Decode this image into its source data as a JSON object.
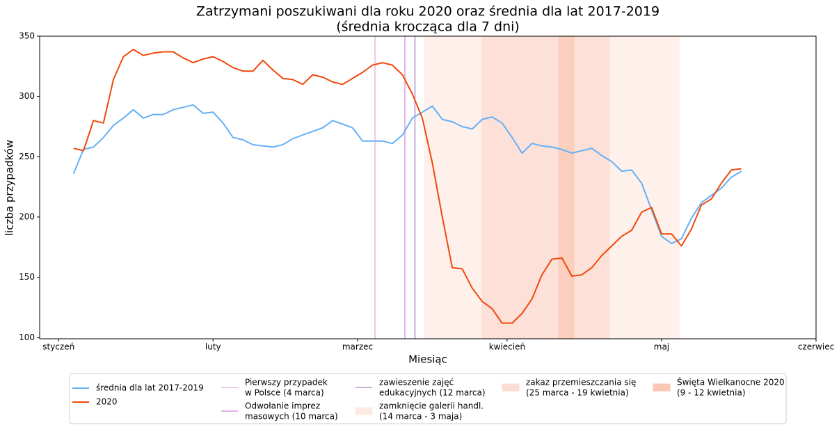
{
  "chart_data": {
    "type": "line",
    "title": "Zatrzymani poszukiwani dla roku 2020 oraz średnia dla lat 2017-2019",
    "subtitle": "(średnia krocząca dla 7 dni)",
    "x_label": "Miesiąc",
    "y_label": "liczba przypadków",
    "x": [
      3,
      5,
      7,
      9,
      11,
      13,
      15,
      17,
      19,
      21,
      23,
      25,
      27,
      29,
      31,
      33,
      35,
      37,
      39,
      41,
      43,
      45,
      47,
      49,
      51,
      53,
      55,
      57,
      59,
      61,
      63,
      65,
      67,
      69,
      71,
      73,
      75,
      77,
      79,
      81,
      83,
      85,
      87,
      89,
      91,
      93,
      95,
      97,
      99,
      101,
      103,
      105,
      107,
      109,
      111,
      113,
      115,
      117,
      119,
      121,
      123,
      125,
      127,
      129,
      131,
      133,
      135,
      137
    ],
    "series": [
      {
        "name": "średnia dla lat 2017-2019",
        "color": "#64b0f5",
        "values": [
          236,
          256,
          258,
          266,
          276,
          282,
          289,
          282,
          285,
          285,
          289,
          291,
          293,
          286,
          287,
          278,
          266,
          264,
          260,
          259,
          258,
          260,
          265,
          268,
          271,
          274,
          280,
          277,
          274,
          263,
          263,
          263,
          261,
          268,
          282,
          287,
          292,
          281,
          279,
          275,
          273,
          281,
          283,
          278,
          266,
          253,
          261,
          259,
          258,
          256,
          253,
          255,
          257,
          251,
          246,
          238,
          239,
          228,
          206,
          184,
          178,
          182,
          199,
          212,
          218,
          224,
          233,
          238
        ]
      },
      {
        "name": "2020",
        "color": "#f0480a",
        "values": [
          257,
          255,
          280,
          278,
          314,
          333,
          339,
          334,
          336,
          337,
          337,
          332,
          328,
          331,
          333,
          329,
          324,
          321,
          321,
          330,
          322,
          315,
          314,
          310,
          318,
          316,
          312,
          310,
          315,
          320,
          326,
          328,
          326,
          318,
          302,
          282,
          245,
          200,
          158,
          157,
          141,
          130,
          124,
          112,
          112,
          120,
          132,
          152,
          165,
          166,
          151,
          152,
          158,
          168,
          176,
          184,
          189,
          204,
          208,
          186,
          186,
          176,
          190,
          210,
          215,
          228,
          239,
          240
        ]
      }
    ],
    "events": [
      {
        "kind": "vline",
        "label": [
          "Pierwszy przypadek",
          "w Polsce (4 marca)"
        ],
        "x": 63.5,
        "color": "#f0c8e8"
      },
      {
        "kind": "vline",
        "label": [
          "Odwołanie imprez",
          "masowych (10 marca)"
        ],
        "x": 69.5,
        "color": "#e0b4e4"
      },
      {
        "kind": "vline",
        "label": [
          "zawieszenie zajęć",
          "edukacyjnych (12 marca)"
        ],
        "x": 71.5,
        "color": "#c8acdc"
      },
      {
        "kind": "span",
        "label": [
          "zamknięcie galerii handl.",
          "(14 marca - 3 maja)"
        ],
        "x_range": [
          73.5,
          124.5
        ],
        "color": "#fdebe3"
      },
      {
        "kind": "span",
        "label": [
          "zakaz przemieszczania się",
          "(25 marca - 19 kwietnia)"
        ],
        "x_range": [
          85,
          110.5
        ],
        "color": "#fcdcd3"
      },
      {
        "kind": "span",
        "label": [
          "Święta Wielkanocne 2020",
          "(9 - 12 kwietnia)"
        ],
        "x_range": [
          100.4,
          103.4
        ],
        "color": "#f9c7b3"
      }
    ],
    "xlim": [
      -3.8,
      152
    ],
    "xticks": [
      {
        "value": 0,
        "label": "styczeń"
      },
      {
        "value": 31,
        "label": "luty"
      },
      {
        "value": 60,
        "label": "marzec"
      },
      {
        "value": 90,
        "label": "kwiecień"
      },
      {
        "value": 121,
        "label": "maj"
      },
      {
        "value": 152,
        "label": "czerwiec"
      }
    ],
    "ylim": [
      99,
      350
    ],
    "yticks": [
      100,
      150,
      200,
      250,
      300,
      350
    ],
    "grid": false
  }
}
